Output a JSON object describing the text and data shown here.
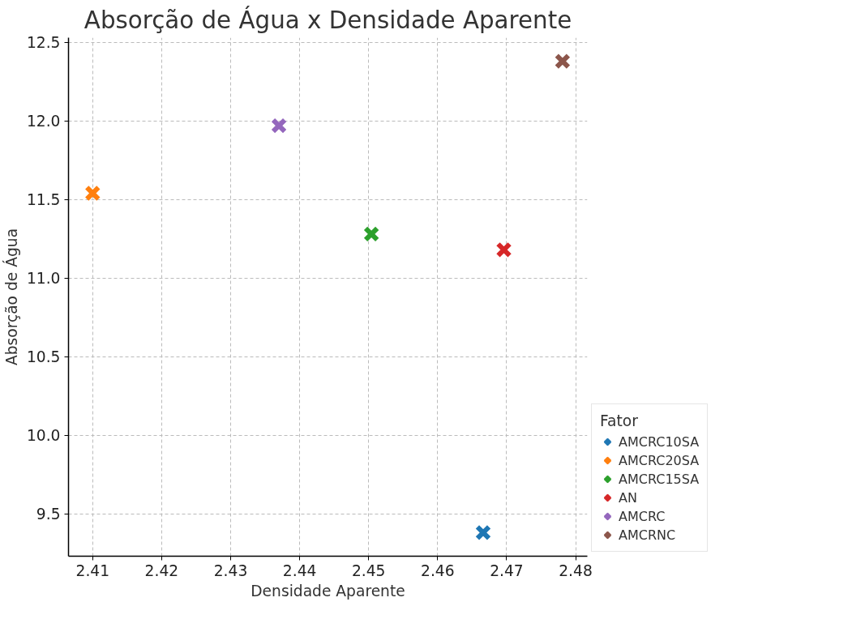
{
  "chart_data": {
    "type": "scatter",
    "title": "Absorção de Água x Densidade Aparente",
    "xlabel": "Densidade Aparente",
    "ylabel": "Absorção de Água",
    "legend_title": "Fator",
    "marker": "cross",
    "grid": true,
    "legend": "bottom right",
    "xlim": [
      2.4065,
      2.4817
    ],
    "xticks": [
      {
        "value": 2.41,
        "label": "2.41"
      },
      {
        "value": 2.42,
        "label": "2.42"
      },
      {
        "value": 2.43,
        "label": "2.43"
      },
      {
        "value": 2.44,
        "label": "2.44"
      },
      {
        "value": 2.45,
        "label": "2.45"
      },
      {
        "value": 2.46,
        "label": "2.46"
      },
      {
        "value": 2.47,
        "label": "2.47"
      },
      {
        "value": 2.48,
        "label": "2.48"
      }
    ],
    "ylim": [
      9.23,
      12.53
    ],
    "yticks": [
      {
        "value": 9.5,
        "label": "9.5"
      },
      {
        "value": 10.0,
        "label": "10.0"
      },
      {
        "value": 10.5,
        "label": "10.5"
      },
      {
        "value": 11.0,
        "label": "11.0"
      },
      {
        "value": 11.5,
        "label": "11.5"
      },
      {
        "value": 12.0,
        "label": "12.0"
      },
      {
        "value": 12.5,
        "label": "12.5"
      }
    ],
    "series": [
      {
        "name": "AMCRC10SA",
        "color": "#1f77b4",
        "x": [
          2.4666
        ],
        "values": [
          9.38
        ]
      },
      {
        "name": "AMCRC20SA",
        "color": "#ff7f0e",
        "x": [
          2.41
        ],
        "values": [
          11.54
        ]
      },
      {
        "name": "AMCRC15SA",
        "color": "#2ca02c",
        "x": [
          2.4504
        ],
        "values": [
          11.28
        ]
      },
      {
        "name": "AN",
        "color": "#d62728",
        "x": [
          2.4696
        ],
        "values": [
          11.18
        ]
      },
      {
        "name": "AMCRC",
        "color": "#9467bd",
        "x": [
          2.437
        ],
        "values": [
          11.97
        ]
      },
      {
        "name": "AMCRNC",
        "color": "#8c564b",
        "x": [
          2.4781
        ],
        "values": [
          12.38
        ]
      }
    ]
  }
}
